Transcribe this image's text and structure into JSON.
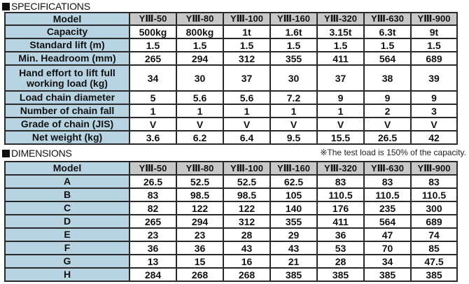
{
  "specifications": {
    "title": "SPECIFICATIONS",
    "header_label": "Model",
    "models": [
      "YⅢ-50",
      "YⅢ-80",
      "YⅢ-100",
      "YⅢ-160",
      "YⅢ-320",
      "YⅢ-630",
      "YⅢ-900"
    ],
    "rows": [
      {
        "label": "Capacity",
        "values": [
          "500kg",
          "800kg",
          "1t",
          "1.6t",
          "3.15t",
          "6.3t",
          "9t"
        ]
      },
      {
        "label": "Standard lift (m)",
        "values": [
          "1.5",
          "1.5",
          "1.5",
          "1.5",
          "1.5",
          "1.5",
          "1.5"
        ]
      },
      {
        "label": "Min. Headroom (mm)",
        "values": [
          "265",
          "294",
          "312",
          "355",
          "411",
          "564",
          "689"
        ]
      },
      {
        "label": "Hand effort to lift full working load (kg)",
        "values": [
          "34",
          "30",
          "37",
          "30",
          "37",
          "38",
          "39"
        ]
      },
      {
        "label": "Load chain diameter",
        "values": [
          "5",
          "5.6",
          "5.6",
          "7.2",
          "9",
          "9",
          "9"
        ]
      },
      {
        "label": "Number of chain fall",
        "values": [
          "1",
          "1",
          "1",
          "1",
          "1",
          "2",
          "3"
        ]
      },
      {
        "label": "Grade of chain (JIS)",
        "values": [
          "V",
          "V",
          "V",
          "V",
          "V",
          "V",
          "V"
        ]
      },
      {
        "label": "Net weight (kg)",
        "values": [
          "3.6",
          "6.2",
          "6.4",
          "9.5",
          "15.5",
          "26.5",
          "42"
        ]
      }
    ],
    "note": "※The test load is 150% of the capacity."
  },
  "dimensions": {
    "title": "DIMENSIONS",
    "header_label": "Model",
    "models": [
      "YⅢ-50",
      "YⅢ-80",
      "YⅢ-100",
      "YⅢ-160",
      "YⅢ-320",
      "YⅢ-630",
      "YⅢ-900"
    ],
    "rows": [
      {
        "label": "A",
        "values": [
          "26.5",
          "52.5",
          "52.5",
          "62.5",
          "83",
          "83",
          "83"
        ]
      },
      {
        "label": "B",
        "values": [
          "83",
          "98.5",
          "98.5",
          "105",
          "110.5",
          "110.5",
          "110.5"
        ]
      },
      {
        "label": "C",
        "values": [
          "82",
          "122",
          "122",
          "140",
          "176",
          "235",
          "300"
        ]
      },
      {
        "label": "D",
        "values": [
          "265",
          "294",
          "312",
          "355",
          "411",
          "564",
          "689"
        ]
      },
      {
        "label": "E",
        "values": [
          "23",
          "23",
          "28",
          "29",
          "36",
          "47",
          "74"
        ]
      },
      {
        "label": "F",
        "values": [
          "36",
          "36",
          "43",
          "43",
          "53",
          "70",
          "85"
        ]
      },
      {
        "label": "G",
        "values": [
          "13",
          "15",
          "16",
          "21",
          "28",
          "34",
          "47.5"
        ]
      },
      {
        "label": "H",
        "values": [
          "284",
          "268",
          "268",
          "385",
          "385",
          "385",
          "385"
        ]
      }
    ]
  }
}
